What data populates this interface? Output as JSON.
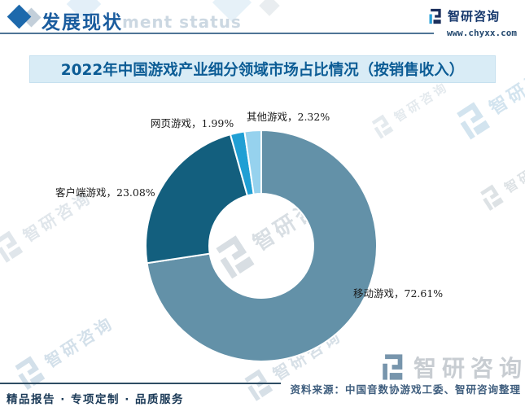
{
  "header": {
    "section_title": "发展现状",
    "ghost_text": "ment status",
    "brand": {
      "name": "智研咨询",
      "url": "www.chyxx.com"
    }
  },
  "title_banner": {
    "text": "2022年中国游戏产业细分领域市场占比情况（按销售收入）"
  },
  "chart_data": {
    "type": "pie",
    "subtype": "donut",
    "title": "2022年中国游戏产业细分领域市场占比情况（按销售收入）",
    "unit": "%",
    "start_angle_deg": 0,
    "clockwise": true,
    "inner_radius_ratio": 0.45,
    "gap_color": "#ffffff",
    "slices": [
      {
        "name": "移动游戏",
        "value": 72.61,
        "label": "移动游戏，72.61%",
        "color": "#6391a8"
      },
      {
        "name": "客户端游戏",
        "value": 23.08,
        "label": "客户端游戏，23.08%",
        "color": "#135f7e"
      },
      {
        "name": "网页游戏",
        "value": 1.99,
        "label": "网页游戏，1.99%",
        "color": "#209fd4"
      },
      {
        "name": "其他游戏",
        "value": 2.32,
        "label": "其他游戏，2.32%",
        "color": "#96d2ee"
      }
    ]
  },
  "footer": {
    "source": "资料来源：中国音数协游戏工委、智研咨询整理",
    "motto": "精品报告 · 专项定制 · 品质服务",
    "brand_name": "智研咨询"
  },
  "watermark": {
    "text": "智研咨询"
  }
}
